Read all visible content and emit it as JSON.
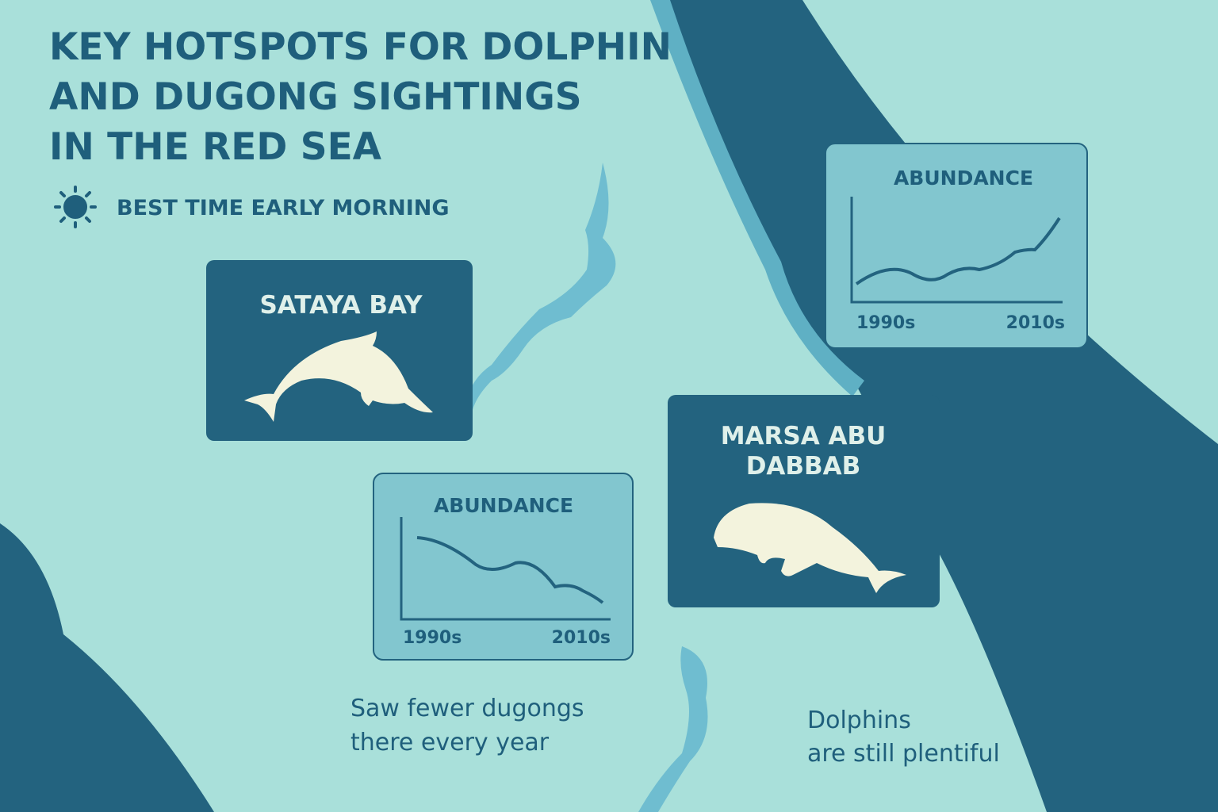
{
  "header": {
    "title_lines": [
      "KEY HOTSPOTS FOR DOLPHIN",
      "AND DUGONG SIGHTINGS",
      "IN THE RED SEA"
    ],
    "tip": "BEST TIME EARLY MORNING"
  },
  "sites": [
    {
      "name_lines": [
        "SATAYA BAY"
      ]
    },
    {
      "name_lines": [
        "MARSA ABU",
        "DABBAB"
      ]
    }
  ],
  "charts": [
    {
      "label": "ABUNDANCE",
      "x_start": "1990s",
      "x_end": "2010s"
    },
    {
      "label": "ABUNDANCE",
      "x_start": "1990s",
      "x_end": "2010s"
    }
  ],
  "notes": [
    {
      "lines": [
        "Saw fewer dugongs",
        "there every year"
      ]
    },
    {
      "lines": [
        "Dolphins",
        "are still plentiful"
      ]
    }
  ]
}
